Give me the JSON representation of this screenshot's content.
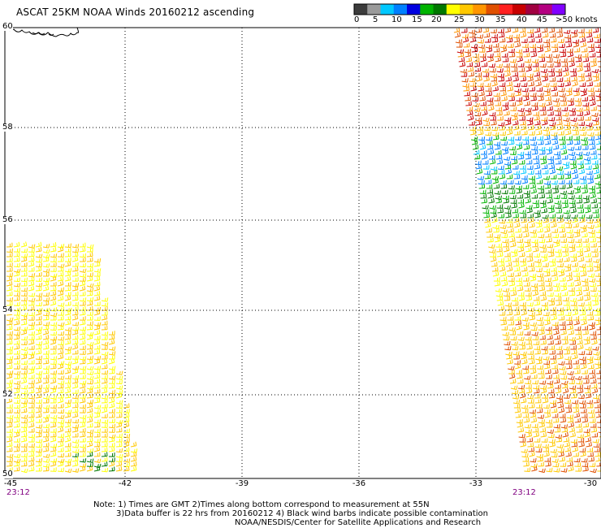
{
  "title": "ASCAT 25KM NOAA Winds 20160212 ascending",
  "legend": {
    "labels": [
      "0",
      "5",
      "10",
      "15",
      "20",
      "25",
      "30",
      "35",
      "40",
      "45",
      ">50 knots"
    ],
    "colors": [
      "#3c3c3c",
      "#9a9a9a",
      "#00c8ff",
      "#0080ff",
      "#0000e0",
      "#00b400",
      "#007800",
      "#ffff00",
      "#ffc800",
      "#ff9600",
      "#e05000",
      "#ff2020",
      "#c80000",
      "#a00040",
      "#b40080",
      "#8000ff"
    ]
  },
  "map": {
    "lat_labels": [
      "60",
      "58",
      "56",
      "54",
      "52",
      "50"
    ],
    "lon_labels": [
      "-45",
      "-42",
      "-39",
      "-36",
      "-33",
      "-30"
    ],
    "lon_range": [
      -45,
      -30
    ],
    "lat_range": [
      50,
      60
    ],
    "time_labels": [
      "23:12",
      "23:12"
    ]
  },
  "notes": [
    "Note: 1) Times are GMT 2)Times along bottom correspond to measurement at 55N",
    "3)Data buffer is 22 hrs from 20160212 4) Black wind barbs indicate possible contamination",
    "NOAA/NESDIS/Center for Satellite Applications and Research"
  ]
}
